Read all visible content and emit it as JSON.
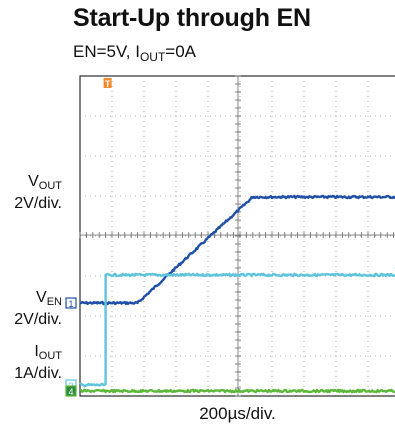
{
  "header": {
    "title": "Start-Up through EN",
    "subtitle_en": "EN=5V, I",
    "subtitle_sub": "OUT",
    "subtitle_rest": "=0A"
  },
  "channels": [
    {
      "id": "1",
      "name": "V",
      "name_sub": "OUT",
      "scale": "2V/div.",
      "color": "#1f4fa6"
    },
    {
      "id": "2",
      "name": "V",
      "name_sub": "EN",
      "scale": "2V/div.",
      "color": "#5ec4dc"
    },
    {
      "id": "4",
      "name": "I",
      "name_sub": "OUT",
      "scale": "1A/div.",
      "color": "#5cb83a"
    }
  ],
  "trigger_marker": "T",
  "chart_data": {
    "type": "line",
    "xlabel": "200µs/div.",
    "grid": true,
    "x_divisions": 10,
    "y_divisions": 8,
    "series": [
      {
        "name": "VOUT",
        "x": [
          0,
          1.8,
          5.4,
          10
        ],
        "y": [
          -1.7,
          -1.7,
          0.95,
          0.95
        ]
      },
      {
        "name": "VEN",
        "x": [
          0,
          0.8,
          0.8,
          10
        ],
        "y": [
          -3.75,
          -3.75,
          -1.0,
          -1.0
        ]
      },
      {
        "name": "IOUT",
        "x": [
          0,
          10
        ],
        "y": [
          -3.9,
          -3.9
        ]
      }
    ]
  }
}
